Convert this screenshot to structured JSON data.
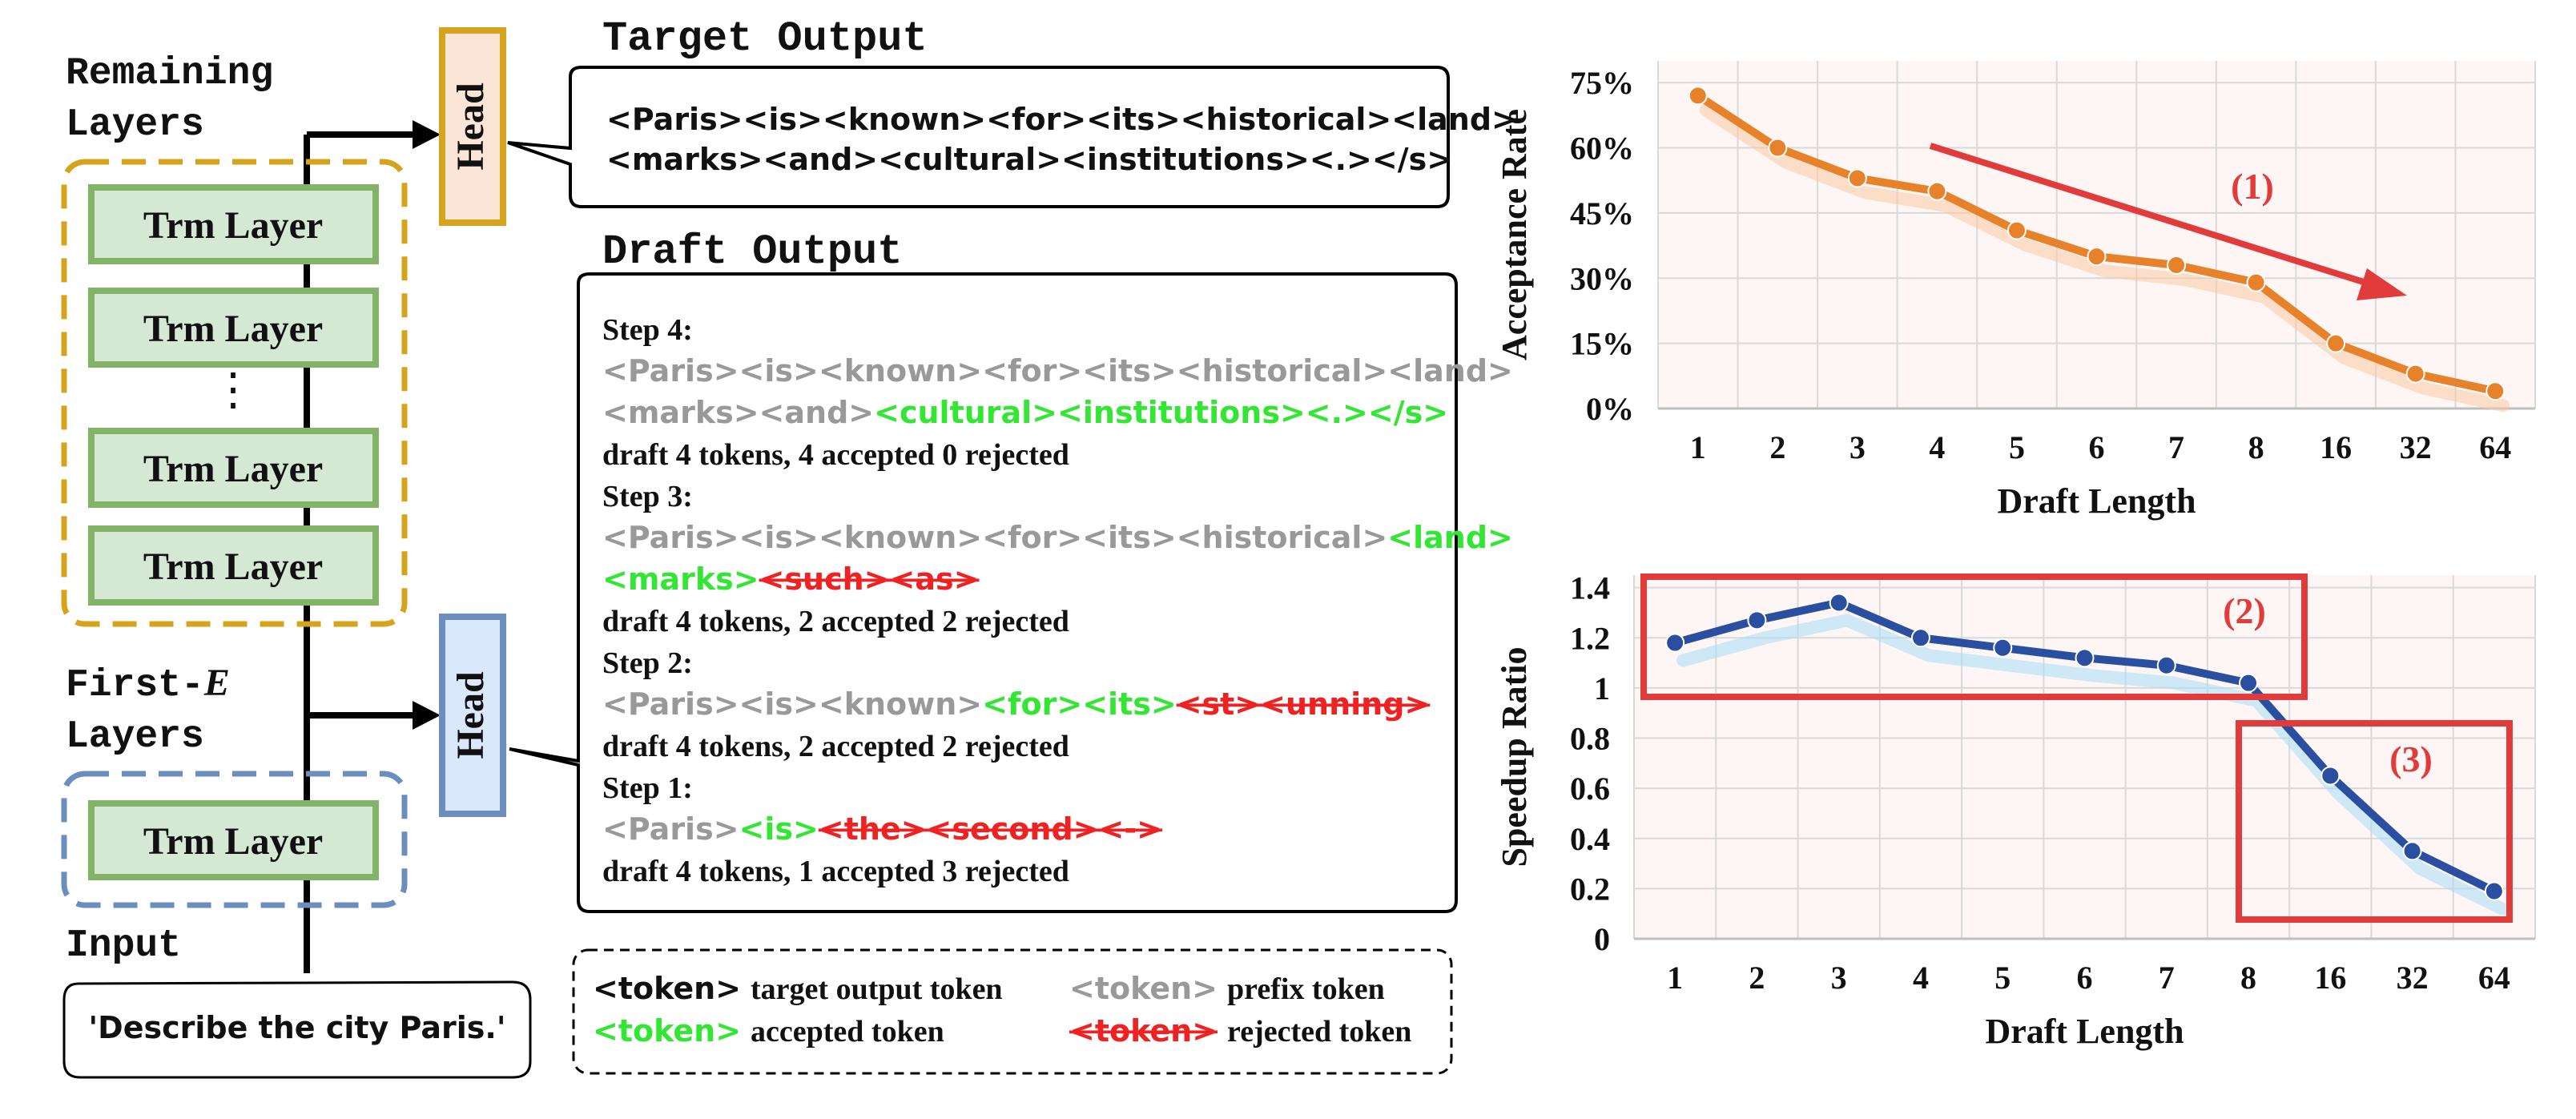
{
  "arch": {
    "remaining_label_1": "Remaining",
    "remaining_label_2": "Layers",
    "layer_label": "Trm Layer",
    "dots": "⋮",
    "first_label_1": "First-",
    "first_label_e": "E",
    "first_label_2": "Layers",
    "head_label": "Head",
    "input_label": "Input",
    "input_text": "'Describe the city Paris.'"
  },
  "target": {
    "title": "Target Output",
    "line1": "<Paris><is><known><for><its><historical><land>",
    "line2": "<marks><and><cultural><institutions><.></s>"
  },
  "draft": {
    "title": "Draft Output",
    "step4": {
      "label": "Step 4:",
      "l1_prefix": "<Paris><is><known><for><its><historical><land>",
      "l2_prefix": "<marks><and>",
      "l2_accepted": "<cultural><institutions><.></s>",
      "summary": "draft 4 tokens, 4 accepted 0 rejected"
    },
    "step3": {
      "label": "Step 3:",
      "l1_prefix": "<Paris><is><known><for><its><historical>",
      "l1_accepted": "<land>",
      "l2_accepted": "<marks>",
      "l2_rejected": "<such><as>",
      "summary": "draft 4 tokens, 2 accepted 2 rejected"
    },
    "step2": {
      "label": "Step 2:",
      "prefix": "<Paris><is><known>",
      "accepted": "<for><its>",
      "rejected": "<st><unning>",
      "summary": "draft 4 tokens, 2 accepted 2 rejected"
    },
    "step1": {
      "label": "Step 1:",
      "prefix": "<Paris>",
      "accepted": "<is>",
      "rejected": "<the><second><->",
      "summary": "draft 4 tokens, 1 accepted 3 rejected"
    }
  },
  "legend": {
    "token": "<token>",
    "target_label": "target output token",
    "prefix_label": "prefix token",
    "accepted_label": "accepted token",
    "rejected_label": "rejected token"
  },
  "colors": {
    "accepted": "#33e633",
    "rejected": "#ee2222",
    "prefix": "#999999",
    "layer_fill": "#d5e8d4",
    "layer_stroke": "#82b366",
    "orange_box": "#d6a31c",
    "blue_box": "#6c8ebf",
    "orange_line": "#e8822a",
    "blue_line": "#2a4fa0",
    "annot_red": "#e23b3b"
  },
  "chart_data": [
    {
      "type": "line",
      "categories": [
        "1",
        "2",
        "3",
        "4",
        "5",
        "6",
        "7",
        "8",
        "16",
        "32",
        "64"
      ],
      "values": [
        72,
        60,
        53,
        50,
        41,
        35,
        33,
        29,
        15,
        8,
        4
      ],
      "xlabel": "Draft Length",
      "ylabel": "Acceptance Rate",
      "yticks": [
        "0%",
        "15%",
        "30%",
        "45%",
        "60%",
        "75%"
      ],
      "ylim": [
        0,
        80
      ],
      "grid": true,
      "annotations": [
        "(1)"
      ]
    },
    {
      "type": "line",
      "categories": [
        "1",
        "2",
        "3",
        "4",
        "5",
        "6",
        "7",
        "8",
        "16",
        "32",
        "64"
      ],
      "values": [
        1.18,
        1.27,
        1.34,
        1.2,
        1.16,
        1.12,
        1.09,
        1.02,
        0.65,
        0.35,
        0.19
      ],
      "xlabel": "Draft Length",
      "ylabel": "Speedup Ratio",
      "yticks": [
        "0",
        "0.2",
        "0.4",
        "0.6",
        "0.8",
        "1",
        "1.2",
        "1.4"
      ],
      "ylim": [
        0,
        1.45
      ],
      "grid": true,
      "annotations": [
        "(2)",
        "(3)"
      ]
    }
  ]
}
